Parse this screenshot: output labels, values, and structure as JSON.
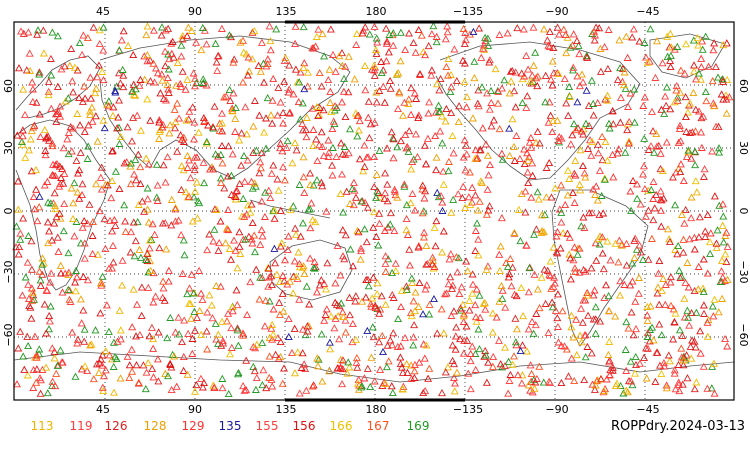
{
  "map": {
    "title": "ROPPdry.2024-03-13",
    "projection": "cylindrical-equidistant",
    "lon_range": [
      0,
      360
    ],
    "lat_range": [
      -90,
      90
    ],
    "grid": "dotted",
    "marker_shape": "open-triangle",
    "top_lon_ticks": [
      "45",
      "90",
      "135",
      "180",
      "−135",
      "−90",
      "−45"
    ],
    "bottom_lon_ticks": [
      "45",
      "90",
      "135",
      "180",
      "−135",
      "−90",
      "−45"
    ],
    "left_lat_ticks": [
      "60",
      "30",
      "0",
      "−30",
      "−60"
    ],
    "right_lat_ticks": [
      "60",
      "30",
      "0",
      "−30",
      "−60"
    ]
  },
  "legend": [
    {
      "label": "113",
      "color": "#f0b400"
    },
    {
      "label": "119",
      "color": "#ff3b3b"
    },
    {
      "label": "126",
      "color": "#e02020"
    },
    {
      "label": "128",
      "color": "#f0a000"
    },
    {
      "label": "129",
      "color": "#ff3030"
    },
    {
      "label": "135",
      "color": "#1a1aa0"
    },
    {
      "label": "155",
      "color": "#ff4040"
    },
    {
      "label": "156",
      "color": "#e01010"
    },
    {
      "label": "166",
      "color": "#f0c000"
    },
    {
      "label": "167",
      "color": "#ff5020"
    },
    {
      "label": "169",
      "color": "#229922"
    }
  ]
}
